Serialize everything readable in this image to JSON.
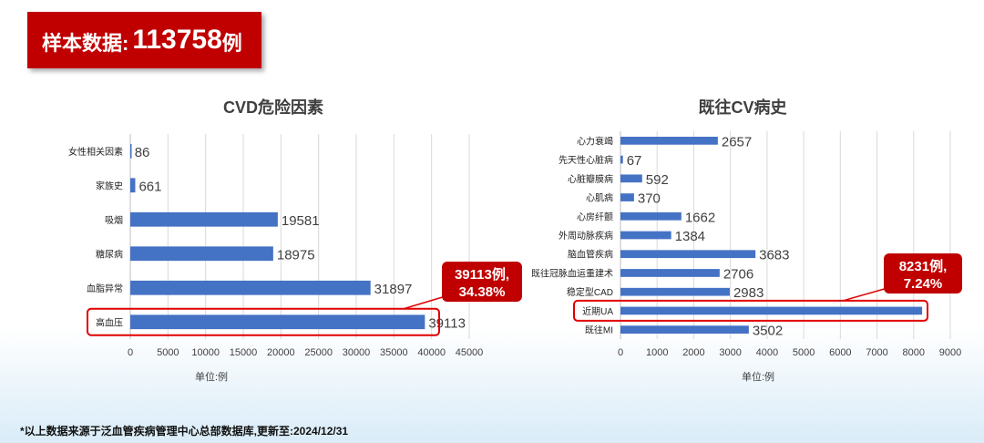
{
  "banner": {
    "label": "样本数据:",
    "value": "113758",
    "unit": "例"
  },
  "chart_data": [
    {
      "type": "bar",
      "orientation": "horizontal",
      "title": "CVD危险因素",
      "categories": [
        "女性相关因素",
        "家族史",
        "吸烟",
        "糖尿病",
        "血脂异常",
        "高血压"
      ],
      "values": [
        86,
        661,
        19581,
        18975,
        31897,
        39113
      ],
      "xlim": [
        0,
        45000
      ],
      "xticks": [
        "0",
        "5000",
        "10000",
        "15000",
        "20000",
        "25000",
        "30000",
        "35000",
        "40000",
        "45000"
      ],
      "xlabel": "单位:例",
      "grid": true,
      "color": "#4472c4",
      "highlight": {
        "category": "高血压",
        "callout_line1": "39113例,",
        "callout_line2": "34.38%"
      }
    },
    {
      "type": "bar",
      "orientation": "horizontal",
      "title": "既往CV病史",
      "categories": [
        "心力衰竭",
        "先天性心脏病",
        "心脏瓣膜病",
        "心肌病",
        "心房纤颤",
        "外周动脉疾病",
        "脑血管疾病",
        "既往冠脉血运重建术",
        "稳定型CAD",
        "近期UA",
        "既往MI"
      ],
      "values": [
        2657,
        67,
        592,
        370,
        1662,
        1384,
        3683,
        2706,
        2983,
        8231,
        3502
      ],
      "xlim": [
        0,
        9000
      ],
      "xticks": [
        "0",
        "1000",
        "2000",
        "3000",
        "4000",
        "5000",
        "6000",
        "7000",
        "8000",
        "9000"
      ],
      "xlabel": "单位:例",
      "grid": true,
      "color": "#4472c4",
      "hide_label_for": "近期UA",
      "highlight": {
        "category": "近期UA",
        "callout_line1": "8231例,",
        "callout_line2": "7.24%"
      }
    }
  ],
  "footnote": "*以上数据来源于泛血管疾病管理中心总部数据库,更新至:2024/12/31"
}
